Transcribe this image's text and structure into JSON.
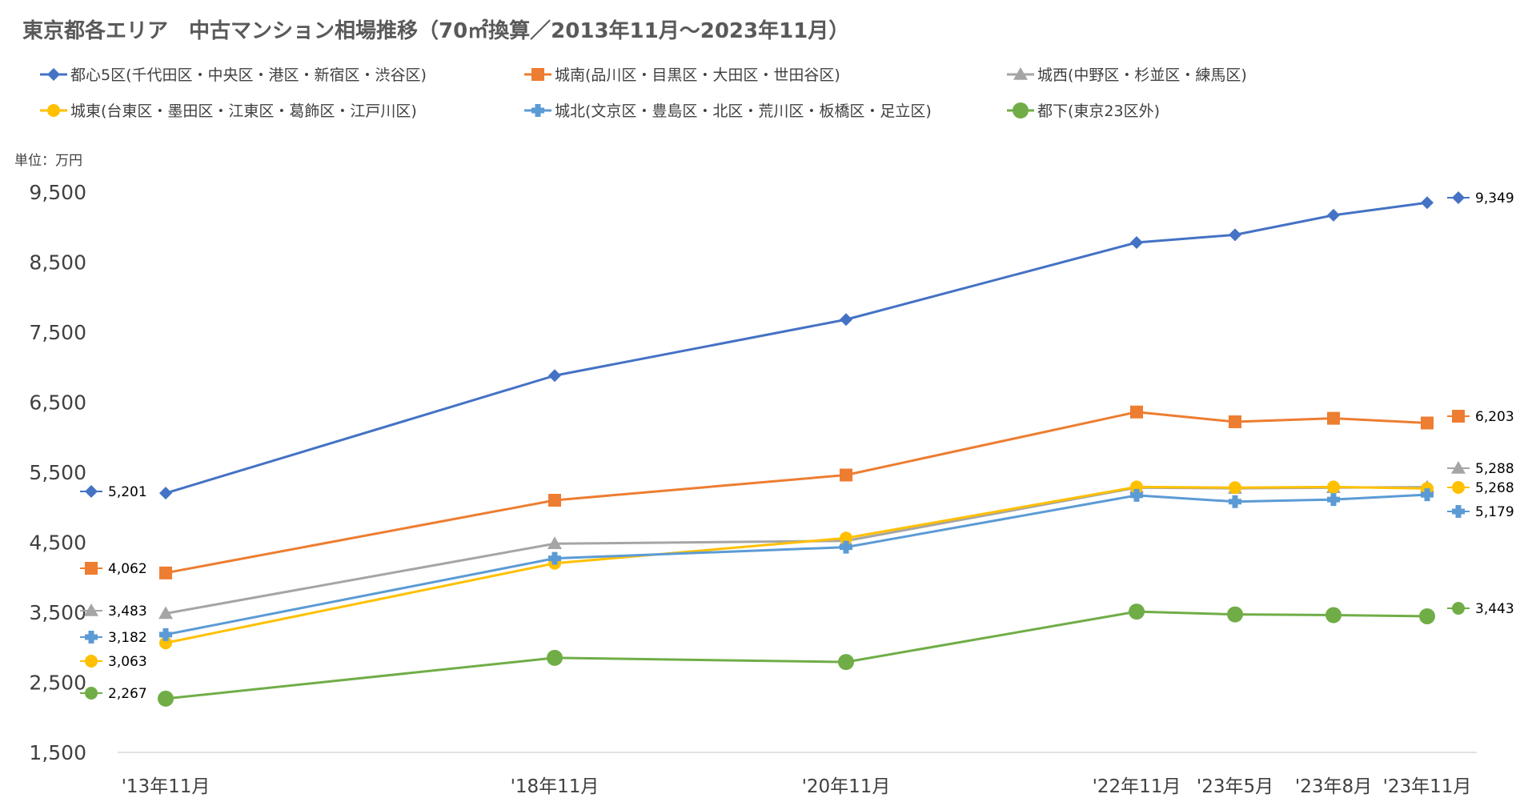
{
  "chart_data": {
    "type": "line",
    "title": "東京都各エリア　中古マンション相場推移（70㎡換算／2013年11月～2023年11月）",
    "unit_label": "単位：万円",
    "xlabel": "",
    "ylabel": "",
    "ylim": [
      1500,
      9500
    ],
    "yticks": [
      "9,500",
      "8,500",
      "7,500",
      "6,500",
      "5,500",
      "4,500",
      "3,500",
      "2,500",
      "1,500"
    ],
    "ytick_values": [
      9500,
      8500,
      7500,
      6500,
      5500,
      4500,
      3500,
      2500,
      1500
    ],
    "categories": [
      "'13年11月",
      "'18年11月",
      "'20年11月",
      "'22年11月",
      "'23年5月",
      "'23年8月",
      "'23年11月"
    ],
    "grid": false,
    "legend_position": "top",
    "series": [
      {
        "name": "都心5区(千代田区・中央区・港区・新宿区・渋谷区)",
        "color": "#4472C4",
        "marker": "diamond",
        "values": [
          5201,
          6880,
          7680,
          8780,
          8890,
          9170,
          9349
        ],
        "start_label": "5,201",
        "end_label": "9,349"
      },
      {
        "name": "城南(品川区・目黒区・大田区・世田谷区)",
        "color": "#ED7D31",
        "marker": "square",
        "values": [
          4062,
          5100,
          5460,
          6360,
          6220,
          6270,
          6203
        ],
        "start_label": "4,062",
        "end_label": "6,203"
      },
      {
        "name": "城西(中野区・杉並区・練馬区)",
        "color": "#A5A5A5",
        "marker": "triangle",
        "values": [
          3483,
          4480,
          4520,
          5280,
          5270,
          5280,
          5288
        ],
        "start_label": "3,483",
        "end_label": "5,288"
      },
      {
        "name": "城東(台東区・墨田区・江東区・葛飾区・江戸川区)",
        "color": "#FFC000",
        "marker": "circle",
        "values": [
          3063,
          4200,
          4560,
          5290,
          5280,
          5290,
          5268
        ],
        "start_label": "3,063",
        "end_label": "5,268"
      },
      {
        "name": "城北(文京区・豊島区・北区・荒川区・板橋区・足立区)",
        "color": "#5B9BD5",
        "marker": "plus",
        "values": [
          3182,
          4270,
          4430,
          5170,
          5080,
          5110,
          5179
        ],
        "start_label": "3,182",
        "end_label": "5,179"
      },
      {
        "name": "都下(東京23区外)",
        "color": "#70AD47",
        "marker": "bigcircle",
        "values": [
          2267,
          2850,
          2790,
          3510,
          3470,
          3460,
          3443
        ],
        "start_label": "2,267",
        "end_label": "3,443"
      }
    ]
  }
}
